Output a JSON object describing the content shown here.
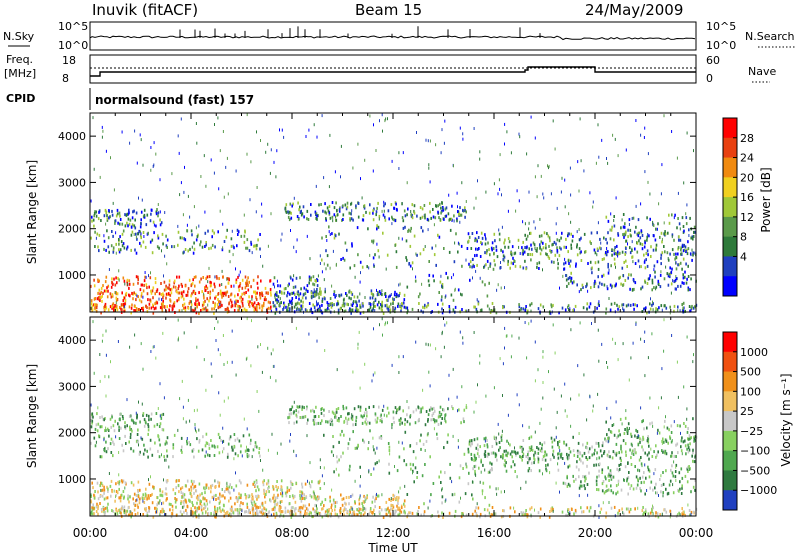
{
  "header": {
    "station": "Inuvik (fitACF)",
    "beam": "Beam 15",
    "date": "24/May/2009"
  },
  "strip_labels": {
    "nsky": "N.Sky",
    "nsky_ticks": [
      "10^5",
      "10^0"
    ],
    "nsearch": "N.Search",
    "nsearch_ticks": [
      "10^5",
      "10^0"
    ],
    "freq_title": "Freq.",
    "freq_unit": "[MHz]",
    "freq_ticks": [
      "18",
      "8"
    ],
    "nave": "Nave",
    "nave_ticks": [
      "60",
      "0"
    ],
    "cpid": "CPID",
    "cpid_text": "normalsound (fast) 157"
  },
  "chart_data": [
    {
      "type": "heatmap",
      "name": "power",
      "ylabel": "Slant Range [km]",
      "xlabel": "Time UT",
      "x_ticks": [
        "00:00",
        "04:00",
        "08:00",
        "12:00",
        "16:00",
        "20:00",
        "00:00"
      ],
      "y_ticks": [
        1000,
        2000,
        3000,
        4000
      ],
      "colorbar_label": "Power [dB]",
      "colorbar_ticks": [
        "28",
        "24",
        "20",
        "16",
        "12",
        "8",
        "4"
      ],
      "colors": [
        "#0000ff",
        "#1f3fbf",
        "#2e7a3a",
        "#5a9a4a",
        "#a0c838",
        "#f0d020",
        "#f08a10",
        "#e84010",
        "#ff0000"
      ]
    },
    {
      "type": "heatmap",
      "name": "velocity",
      "ylabel": "Slant Range [km]",
      "xlabel": "Time UT",
      "x_ticks": [
        "00:00",
        "04:00",
        "08:00",
        "12:00",
        "16:00",
        "20:00",
        "00:00"
      ],
      "y_ticks": [
        1000,
        2000,
        3000,
        4000
      ],
      "colorbar_label": "Velocity [m s⁻¹]",
      "colorbar_ticks": [
        "1000",
        "500",
        "100",
        "25",
        "−25",
        "−100",
        "−500",
        "−1000"
      ],
      "colors": [
        "#2040c0",
        "#2f7a40",
        "#4fa84f",
        "#88d060",
        "#c8c8c8",
        "#f0c060",
        "#f0901a",
        "#f05010",
        "#ff0000"
      ]
    }
  ]
}
